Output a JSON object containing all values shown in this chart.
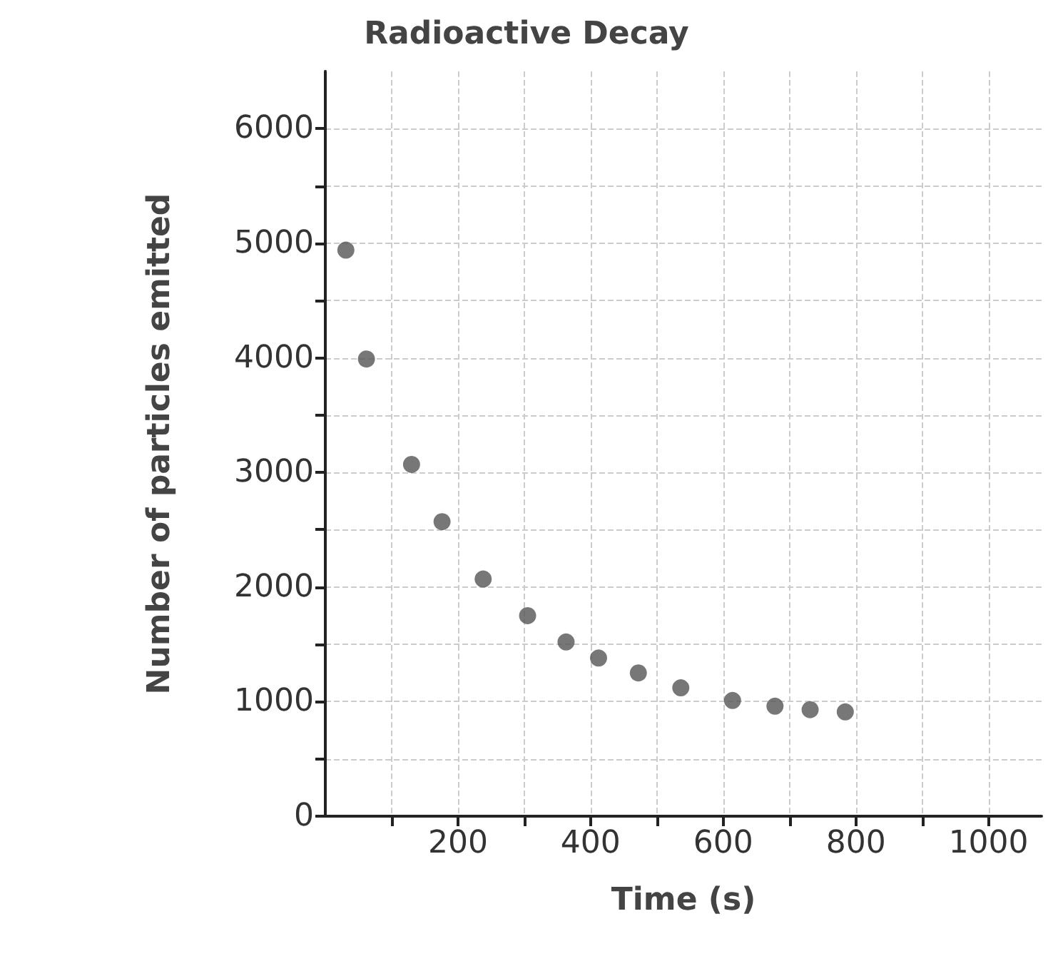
{
  "chart_data": {
    "type": "scatter",
    "title": "Radioactive Decay",
    "xlabel": "Time (s)",
    "ylabel": "Number of particles emitted",
    "x": [
      31,
      62,
      130,
      176,
      238,
      305,
      363,
      412,
      472,
      536,
      614,
      678,
      731,
      784
    ],
    "values": [
      4940,
      3990,
      3070,
      2570,
      2070,
      1750,
      1520,
      1380,
      1250,
      1120,
      1010,
      960,
      930,
      910
    ],
    "color": "#555555",
    "marker": "circle",
    "grid": true,
    "xlim": [
      0,
      1080
    ],
    "ylim": [
      0,
      6500
    ],
    "xticks": [
      {
        "value": 100,
        "label": null
      },
      200,
      {
        "value": 300,
        "label": null
      },
      400,
      {
        "value": 500,
        "label": null
      },
      600,
      {
        "value": 700,
        "label": null
      },
      800,
      {
        "value": 900,
        "label": null
      },
      1000
    ],
    "yticks": [
      0,
      {
        "value": 500,
        "label": null
      },
      1000,
      {
        "value": 1500,
        "label": null
      },
      2000,
      {
        "value": 2500,
        "label": null
      },
      3000,
      {
        "value": 3500,
        "label": null
      },
      4000,
      {
        "value": 4500,
        "label": null
      },
      5000,
      {
        "value": 5500,
        "label": null
      },
      6000
    ]
  }
}
